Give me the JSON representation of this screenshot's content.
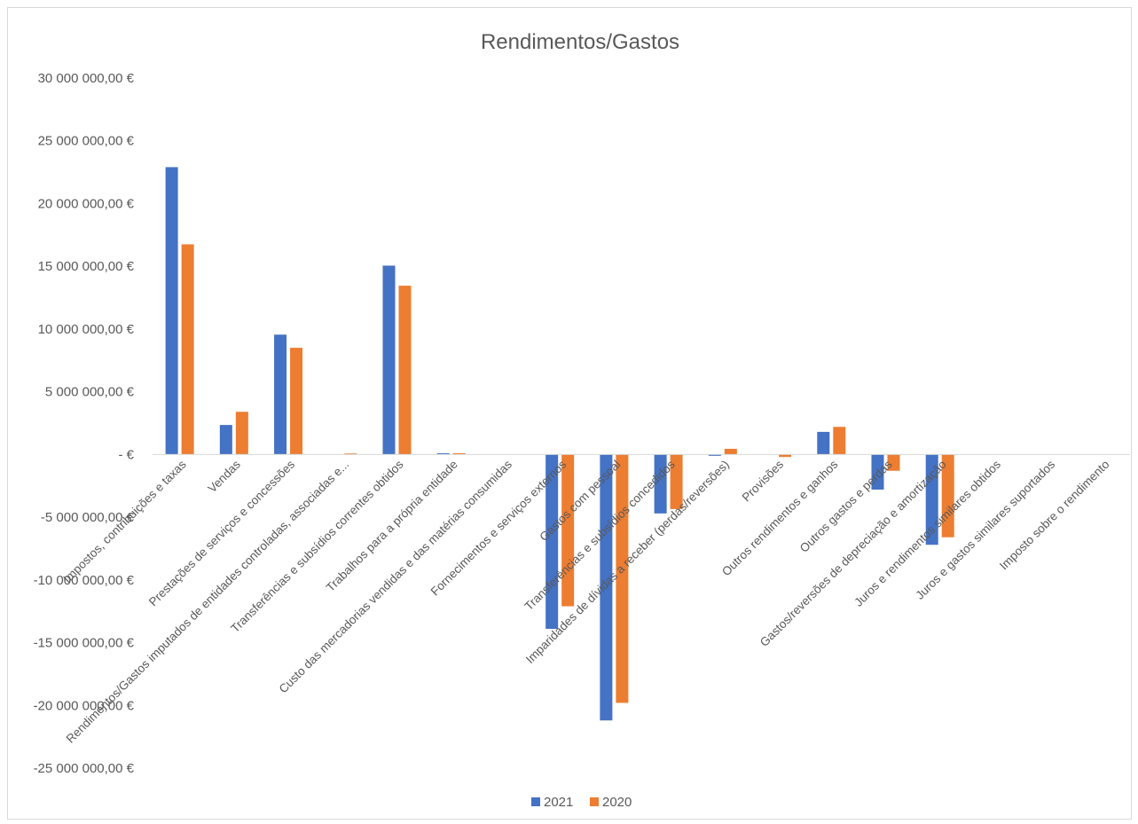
{
  "chart_data": {
    "type": "bar",
    "title": "Rendimentos/Gastos",
    "xlabel": "",
    "ylabel": "",
    "ylim": [
      -25000000,
      30000000
    ],
    "yticks": [
      30000000,
      25000000,
      20000000,
      15000000,
      10000000,
      5000000,
      0,
      -5000000,
      -10000000,
      -15000000,
      -20000000,
      -25000000
    ],
    "ytick_labels": [
      "30 000 000,00 €",
      "25 000 000,00 €",
      "20 000 000,00 €",
      "15 000 000,00 €",
      "10 000 000,00 €",
      "5 000 000,00 €",
      "- €",
      "-5 000 000,00 €",
      "-10 000 000,00 €",
      "-15 000 000,00 €",
      "-20 000 000,00 €",
      "-25 000 000,00 €"
    ],
    "grid": false,
    "legend_position": "bottom",
    "categories": [
      "Impostos, contribuições e taxas",
      "Vendas",
      "Prestações de serviços e concessões",
      "Rendimentos/Gastos imputados de entidades controladas, associadas e...",
      "Transferências e subsídios correntes obtidos",
      "Trabalhos para a própria entidade",
      "Custo das mercadorias vendidas e das matérias consumidas",
      "Fornecimentos e serviços externos",
      "Gastos com pessoal",
      "Transferências e subsídios concedidos",
      "Imparidades de dívidas a receber (perdas/reversões)",
      "Provisões",
      "Outros rendimentos e ganhos",
      "Outros gastos e perdas",
      "Gastos/reversões de depreciação e amortização",
      "Juros e rendimentos similares obtidos",
      "Juros e gastos similares suportados",
      "Imposto sobre o rendimento"
    ],
    "series": [
      {
        "name": "2021",
        "color": "#4472C4",
        "values": [
          22900000,
          2350000,
          9550000,
          0,
          15050000,
          100000,
          0,
          -13900000,
          -21200000,
          -4700000,
          -100000,
          0,
          1800000,
          -2800000,
          -7200000,
          0,
          0,
          0
        ]
      },
      {
        "name": "2020",
        "color": "#ED7D31",
        "values": [
          16750000,
          3400000,
          8500000,
          80000,
          13450000,
          100000,
          0,
          -12100000,
          -19800000,
          -4350000,
          450000,
          -200000,
          2200000,
          -1300000,
          -6600000,
          0,
          0,
          0
        ]
      }
    ]
  }
}
